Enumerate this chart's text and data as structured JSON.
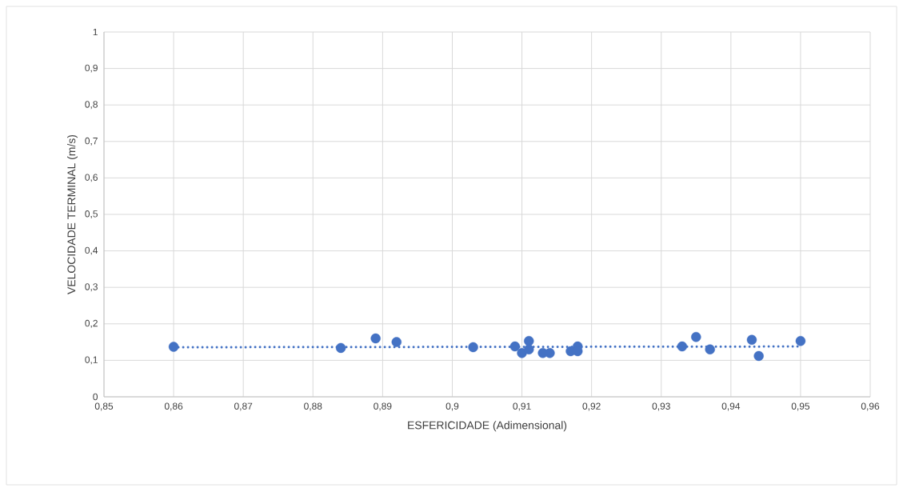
{
  "chart_data": {
    "type": "scatter",
    "xlabel": "ESFERICIDADE (Adimensional)",
    "ylabel": "VELOCIDADE TERMINAL (m/s)",
    "xlim": [
      0.85,
      0.96
    ],
    "ylim": [
      0,
      1
    ],
    "xticks": [
      {
        "value": 0.85,
        "label": "0,85"
      },
      {
        "value": 0.86,
        "label": "0,86"
      },
      {
        "value": 0.87,
        "label": "0,87"
      },
      {
        "value": 0.88,
        "label": "0,88"
      },
      {
        "value": 0.89,
        "label": "0,89"
      },
      {
        "value": 0.9,
        "label": "0,9"
      },
      {
        "value": 0.91,
        "label": "0,91"
      },
      {
        "value": 0.92,
        "label": "0,92"
      },
      {
        "value": 0.93,
        "label": "0,93"
      },
      {
        "value": 0.94,
        "label": "0,94"
      },
      {
        "value": 0.95,
        "label": "0,95"
      },
      {
        "value": 0.96,
        "label": "0,96"
      }
    ],
    "yticks": [
      0,
      {
        "value": 0.1,
        "label": "0,1"
      },
      {
        "value": 0.2,
        "label": "0,2"
      },
      {
        "value": 0.3,
        "label": "0,3"
      },
      {
        "value": 0.4,
        "label": "0,4"
      },
      {
        "value": 0.5,
        "label": "0,5"
      },
      {
        "value": 0.6,
        "label": "0,6"
      },
      {
        "value": 0.7,
        "label": "0,7"
      },
      {
        "value": 0.8,
        "label": "0,8"
      },
      {
        "value": 0.9,
        "label": "0,9"
      },
      1
    ],
    "grid": true,
    "marker": "circle",
    "series": [
      {
        "color": "#4472c4",
        "x": [
          0.86,
          0.884,
          0.889,
          0.892,
          0.903,
          0.909,
          0.91,
          0.911,
          0.911,
          0.913,
          0.914,
          0.917,
          0.918,
          0.918,
          0.933,
          0.935,
          0.937,
          0.943,
          0.944,
          0.95
        ],
        "values": [
          0.137,
          0.134,
          0.16,
          0.15,
          0.136,
          0.138,
          0.12,
          0.153,
          0.13,
          0.12,
          0.12,
          0.125,
          0.138,
          0.125,
          0.138,
          0.164,
          0.13,
          0.156,
          0.112,
          0.153
        ]
      },
      {
        "type": "line",
        "color": "#4472c4",
        "line_style": "dotted",
        "marker": "none",
        "x": [
          0.86,
          0.95
        ],
        "values": [
          0.136,
          0.138
        ]
      }
    ]
  }
}
